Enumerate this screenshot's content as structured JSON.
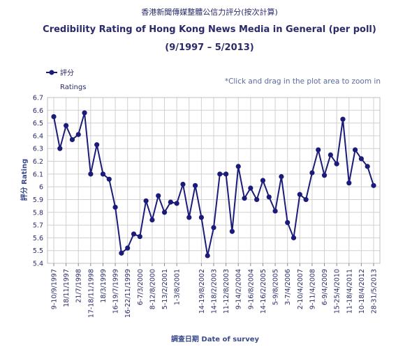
{
  "chart_data": {
    "type": "line",
    "title_zh": "香港新聞傳媒整體公信力評分(按次計算)",
    "title": "Credibility Rating of Hong Kong News Media in General (per poll)",
    "subtitle": "(9/1997 – 5/2013)",
    "hint": "*Click and drag in the plot area to zoom in",
    "legend_label": "評分",
    "ylabel_top": "Ratings",
    "ylabel": "評分 Rating",
    "xlabel": "調查日期 Date of survey",
    "ylim": [
      5.4,
      6.7
    ],
    "yticks": [
      "5.4",
      "5.5",
      "5.6",
      "5.7",
      "5.8",
      "5.9",
      "6",
      "6.1",
      "6.2",
      "6.3",
      "6.4",
      "6.5",
      "6.6",
      "6.7"
    ],
    "grid": true,
    "colors": {
      "line": "#1b1b7a",
      "grid": "#d0d0d0",
      "text": "#2a2a6a"
    },
    "xtick_labels": [
      "9-10/9/1997",
      "18/11/1997",
      "21/7/1998",
      "17-18/11/1998",
      "18/3/1999",
      "16-19/7/1999",
      "16-22/11/1999",
      "6-7/3/2000",
      "8-12/8/2000",
      "5-13/2/2001",
      "1-3/8/2001",
      "14-19/8/2002",
      "14-18/2/2003",
      "11-12/8/2003",
      "9-14/2/2004",
      "9-16/8/2004",
      "14-16/2/2005",
      "5-9/8/2005",
      "3-7/4/2006",
      "2-10/4/2007",
      "9-11/4/2008",
      "6-9/4/2009",
      "15-25/4/2010",
      "11-18/4/2011",
      "10-18/4/2012",
      "28-31/5/2013"
    ],
    "xtick_positions": [
      0,
      2,
      4,
      6,
      8,
      10,
      12,
      14,
      16,
      18,
      20,
      24,
      26,
      28,
      30,
      32,
      34,
      36,
      38,
      40,
      42,
      44,
      46,
      48,
      50,
      52
    ],
    "series": [
      {
        "name": "評分",
        "values": [
          6.55,
          6.3,
          6.48,
          6.37,
          6.41,
          6.58,
          6.1,
          6.33,
          6.1,
          6.06,
          5.84,
          5.48,
          5.52,
          5.63,
          5.61,
          5.89,
          5.74,
          5.93,
          5.8,
          5.88,
          5.87,
          6.02,
          5.76,
          6.01,
          5.76,
          5.46,
          5.68,
          6.1,
          6.1,
          5.65,
          6.16,
          5.91,
          5.99,
          5.9,
          6.05,
          5.92,
          5.81,
          6.08,
          5.72,
          5.6,
          5.94,
          5.9,
          6.11,
          6.29,
          6.09,
          6.25,
          6.18,
          6.53,
          6.03,
          6.29,
          6.22,
          6.16,
          6.01
        ]
      }
    ]
  }
}
